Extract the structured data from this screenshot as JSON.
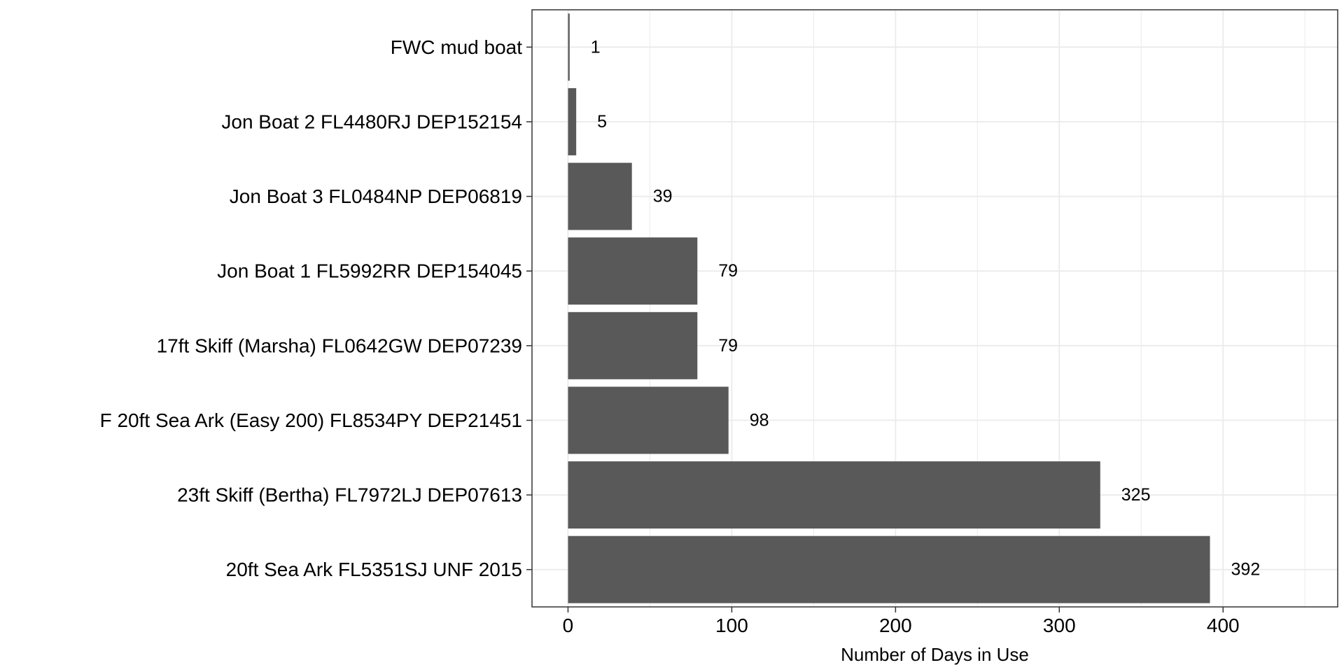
{
  "chart_data": {
    "type": "bar",
    "orientation": "horizontal",
    "categories": [
      "FWC mud boat",
      "Jon Boat 2 FL4480RJ DEP152154",
      "Jon Boat 3 FL0484NP DEP06819",
      "Jon Boat 1 FL5992RR DEP154045",
      "17ft Skiff (Marsha) FL0642GW DEP07239",
      "F 20ft Sea Ark (Easy 200) FL8534PY DEP21451",
      "23ft Skiff (Bertha) FL7972LJ DEP07613",
      "20ft Sea Ark FL5351SJ UNF 2015"
    ],
    "values": [
      1,
      5,
      39,
      79,
      79,
      98,
      325,
      392
    ],
    "data_labels": [
      "1",
      "5",
      "39",
      "79",
      "79",
      "98",
      "325",
      "392"
    ],
    "title": "",
    "xlabel": "Number of Days in Use",
    "ylabel": "",
    "xlim": [
      -22,
      470
    ],
    "x_ticks": [
      0,
      100,
      200,
      300,
      400
    ],
    "x_tick_labels": [
      "0",
      "100",
      "200",
      "300",
      "400"
    ],
    "x_minor_ticks": [
      50,
      150,
      250,
      350,
      450
    ],
    "grid": true,
    "legend": "none",
    "colors": {
      "bar": "#595959",
      "grid": "#ebebeb",
      "panel_border": "#333333",
      "text": "#000000"
    }
  }
}
